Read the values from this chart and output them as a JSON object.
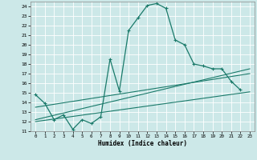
{
  "xlabel": "Humidex (Indice chaleur)",
  "bg_color": "#cce8e8",
  "grid_color": "#ffffff",
  "line_color": "#1a7a6a",
  "xlim": [
    -0.5,
    23.5
  ],
  "ylim": [
    11,
    24.5
  ],
  "xticks": [
    0,
    1,
    2,
    3,
    4,
    5,
    6,
    7,
    8,
    9,
    10,
    11,
    12,
    13,
    14,
    15,
    16,
    17,
    18,
    19,
    20,
    21,
    22,
    23
  ],
  "yticks": [
    11,
    12,
    13,
    14,
    15,
    16,
    17,
    18,
    19,
    20,
    21,
    22,
    23,
    24
  ],
  "curve1_x": [
    0,
    1,
    2,
    3,
    4,
    5,
    6,
    7,
    8,
    9,
    10,
    11,
    12,
    13,
    14,
    15,
    16,
    17,
    18,
    19,
    20,
    21,
    22
  ],
  "curve1_y": [
    14.8,
    13.9,
    12.2,
    12.7,
    11.2,
    12.2,
    11.8,
    12.5,
    18.5,
    15.2,
    21.5,
    22.8,
    24.1,
    24.3,
    23.8,
    20.5,
    20.0,
    18.0,
    17.8,
    17.5,
    17.5,
    16.2,
    15.3
  ],
  "curve2_x": [
    0,
    23
  ],
  "curve2_y": [
    12.2,
    17.5
  ],
  "curve3_x": [
    0,
    23
  ],
  "curve3_y": [
    12.0,
    15.1
  ],
  "curve4_x": [
    0,
    23
  ],
  "curve4_y": [
    13.5,
    17.0
  ]
}
